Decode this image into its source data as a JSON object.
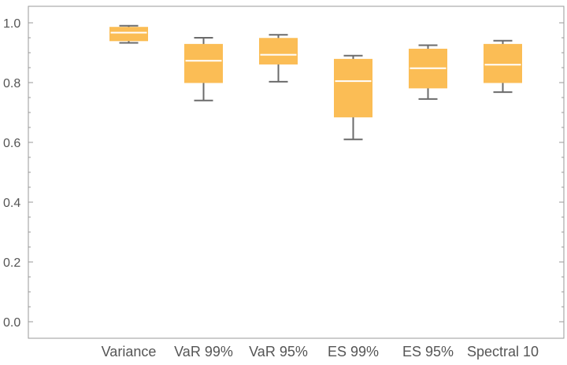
{
  "chart_data": {
    "type": "boxplot",
    "categories": [
      "Variance",
      "VaR 99%",
      "VaR 95%",
      "ES 99%",
      "ES 95%",
      "Spectral 10"
    ],
    "boxes": [
      {
        "category": "Variance",
        "min": 0.933,
        "q1": 0.94,
        "median": 0.967,
        "q3": 0.985,
        "max": 0.99
      },
      {
        "category": "VaR 99%",
        "min": 0.74,
        "q1": 0.8,
        "median": 0.873,
        "q3": 0.928,
        "max": 0.95
      },
      {
        "category": "VaR 95%",
        "min": 0.803,
        "q1": 0.862,
        "median": 0.893,
        "q3": 0.948,
        "max": 0.96
      },
      {
        "category": "ES 99%",
        "min": 0.61,
        "q1": 0.685,
        "median": 0.805,
        "q3": 0.878,
        "max": 0.89
      },
      {
        "category": "ES 95%",
        "min": 0.745,
        "q1": 0.782,
        "median": 0.848,
        "q3": 0.912,
        "max": 0.925
      },
      {
        "category": "Spectral 10",
        "min": 0.768,
        "q1": 0.8,
        "median": 0.86,
        "q3": 0.928,
        "max": 0.94
      }
    ],
    "ylim": [
      -0.05,
      1.06
    ],
    "yticks": [
      0.0,
      0.2,
      0.4,
      0.6,
      0.8,
      1.0
    ],
    "ytick_labels": [
      "0.0",
      "0.2",
      "0.4",
      "0.6",
      "0.8",
      "1.0"
    ],
    "title": "",
    "xlabel": "",
    "ylabel": "",
    "grid": false,
    "colors": {
      "box_fill": "#fbbd55",
      "median_line": "#ffffff",
      "whisker": "#6b6b6b",
      "frame": "#9a9a9a",
      "tick_text": "#555555"
    }
  }
}
